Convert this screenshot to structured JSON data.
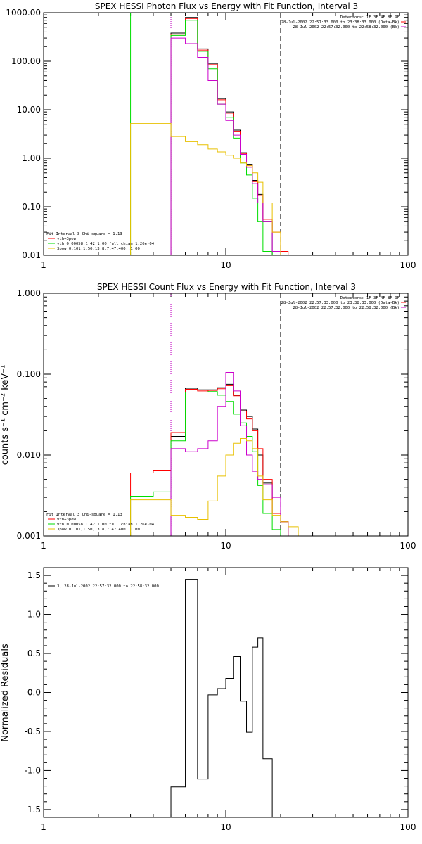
{
  "chart_data": [
    {
      "type": "line",
      "title": "SPEX HESSI Photon Flux vs Energy with Fit Function, Interval 3",
      "xscale": "log",
      "yscale": "log",
      "xlim": [
        1,
        100
      ],
      "ylim": [
        0.01,
        1000
      ],
      "xticks": [
        "1",
        "10",
        "100"
      ],
      "yticks": [
        "0.01",
        "0.10",
        "1.00",
        "10.00",
        "100.00",
        "1000.00"
      ],
      "info_lines": [
        "Detectors: 1F 3F 4F 8F 9F",
        "28-Jul-2002 22:57:33.000 to 23:38:33.000 (Data-Bk)",
        "28-Jul-2002 22:57:32.000 to 22:58:32.000 (Bk)"
      ],
      "legend_lines": [
        "Fit Interval 3   Chi-square = 1.13",
        "vth+3pow",
        "vth 0.00058,1.42,1.00  full chian 1.26e-04",
        "3pow 0.101,1.50,13.8,7.47,400.,1.00"
      ],
      "legend_colors": [
        "#000000",
        "#ff0000",
        "#00dd00",
        "#e8c000"
      ],
      "vlines": [
        {
          "x": 3.0,
          "color": "#00dd00",
          "style": "solid"
        },
        {
          "x": 5.0,
          "color": "#00dd00",
          "style": "dotted"
        },
        {
          "x": 5.0,
          "color": "#cc00cc",
          "style": "dotted"
        },
        {
          "x": 20.0,
          "color": "#000000",
          "style": "dashed"
        }
      ],
      "edges": [
        3.0,
        5.0,
        6.0,
        7.0,
        8.0,
        9.0,
        10.0,
        11.0,
        12.0,
        13.0,
        14.0,
        15.0,
        16.0,
        18.0,
        20.0,
        22.0,
        25.0
      ],
      "series": [
        {
          "color": "#000000",
          "values": [
            null,
            380,
            800,
            180,
            90,
            17,
            9,
            3.8,
            1.3,
            0.75,
            0.35,
            0.18,
            0.05,
            0.01,
            null,
            null
          ]
        },
        {
          "color": "#ff0000",
          "values": [
            null,
            360,
            760,
            170,
            85,
            16,
            8.5,
            3.6,
            1.25,
            0.72,
            0.33,
            0.17,
            0.055,
            0.03,
            0.012,
            null
          ]
        },
        {
          "color": "#00dd00",
          "values": [
            null,
            340,
            700,
            160,
            70,
            13,
            7,
            2.6,
            0.8,
            0.45,
            0.15,
            0.05,
            0.012,
            null,
            null,
            null
          ]
        },
        {
          "color": "#cc00cc",
          "values": [
            null,
            300,
            230,
            120,
            40,
            13,
            6,
            3.0,
            1.2,
            0.65,
            0.3,
            0.12,
            0.05,
            0.012,
            null,
            null
          ]
        },
        {
          "color": "#e8c000",
          "values": [
            5.2,
            2.8,
            2.2,
            1.9,
            1.55,
            1.35,
            1.15,
            1.0,
            0.8,
            0.7,
            0.5,
            0.32,
            0.12,
            0.03,
            0.01,
            null
          ]
        }
      ]
    },
    {
      "type": "line",
      "title": "SPEX HESSI Count Flux vs Energy with Fit Function, Interval 3",
      "xscale": "log",
      "yscale": "log",
      "xlim": [
        1,
        100
      ],
      "ylim": [
        0.001,
        1.0
      ],
      "xticks": [
        "1",
        "10",
        "100"
      ],
      "yticks": [
        "0.001",
        "0.010",
        "0.100",
        "1.000"
      ],
      "ylabel": "counts s⁻¹ cm⁻² keV⁻¹",
      "info_lines": [
        "Detectors: 1F 3F 4F 8F 9F",
        "28-Jul-2002 22:57:33.000 to 23:38:33.000 (Data-Bk)",
        "28-Jul-2002 22:57:32.000 to 22:58:32.000 (Bk)"
      ],
      "legend_lines": [
        "Fit Interval 3   Chi-square = 1.13",
        "vth+3pow",
        "vth 0.00058,1.42,1.00  full chian 1.26e-04",
        "3pow 0.101,1.50,13.8,7.47,400.,1.00"
      ],
      "legend_colors": [
        "#000000",
        "#ff0000",
        "#00dd00",
        "#e8c000"
      ],
      "vlines": [
        {
          "x": 5.0,
          "color": "#000000",
          "style": "dotted"
        },
        {
          "x": 5.0,
          "color": "#cc00cc",
          "style": "dotted"
        },
        {
          "x": 20.0,
          "color": "#000000",
          "style": "dashed"
        }
      ],
      "edges": [
        3.0,
        4.0,
        5.0,
        6.0,
        7.0,
        8.0,
        9.0,
        10.0,
        11.0,
        12.0,
        13.0,
        14.0,
        15.0,
        16.0,
        18.0,
        20.0,
        22.0,
        25.0
      ],
      "series": [
        {
          "color": "#000000",
          "values": [
            null,
            null,
            0.017,
            0.067,
            0.064,
            0.064,
            0.068,
            0.075,
            0.055,
            0.036,
            0.03,
            0.021,
            0.01,
            0.0045,
            0.0019,
            0.0015,
            null
          ]
        },
        {
          "color": "#ff0000",
          "values": [
            0.006,
            0.0065,
            0.019,
            0.065,
            0.062,
            0.063,
            0.066,
            0.072,
            0.054,
            0.035,
            0.028,
            0.02,
            0.012,
            0.005,
            0.0019,
            0.0015,
            null
          ]
        },
        {
          "color": "#00dd00",
          "values": [
            0.0031,
            0.0035,
            0.015,
            0.06,
            0.06,
            0.061,
            0.055,
            0.046,
            0.032,
            0.025,
            0.017,
            0.011,
            0.0042,
            0.0019,
            0.0012,
            null,
            null
          ]
        },
        {
          "color": "#cc00cc",
          "values": [
            null,
            null,
            0.012,
            0.011,
            0.012,
            0.015,
            0.04,
            0.105,
            0.062,
            0.023,
            0.01,
            0.0063,
            0.005,
            0.0043,
            0.003,
            0.0015,
            null
          ]
        },
        {
          "color": "#e8c000",
          "values": [
            0.0028,
            0.0028,
            0.0018,
            0.0017,
            0.0016,
            0.0027,
            0.0055,
            0.01,
            0.014,
            0.016,
            0.015,
            0.012,
            0.0055,
            0.0028,
            0.0018,
            0.0015,
            0.0013
          ]
        }
      ]
    },
    {
      "type": "line",
      "xscale": "log",
      "xlim": [
        1,
        100
      ],
      "ylim": [
        -1.6,
        1.6
      ],
      "xticks": [
        "1",
        "10",
        "100"
      ],
      "yticks": [
        "-1.5",
        "-1.0",
        "-0.5",
        "0.0",
        "0.5",
        "1.0",
        "1.5"
      ],
      "ylabel": "Normalized Residuals",
      "legend_lines": [
        "3, 28-Jul-2002 22:57:32.000 to 22:58:32.000"
      ],
      "edges": [
        5.0,
        6.0,
        7.0,
        8.0,
        9.0,
        10.0,
        11.0,
        12.0,
        13.0,
        14.0,
        15.0,
        16.0,
        18.0,
        20.0
      ],
      "series": [
        {
          "color": "#000000",
          "values": [
            -1.21,
            1.45,
            -1.11,
            -0.03,
            0.05,
            0.18,
            0.46,
            -0.11,
            -0.51,
            0.58,
            0.7,
            -0.85,
            -1.6
          ]
        }
      ]
    }
  ]
}
